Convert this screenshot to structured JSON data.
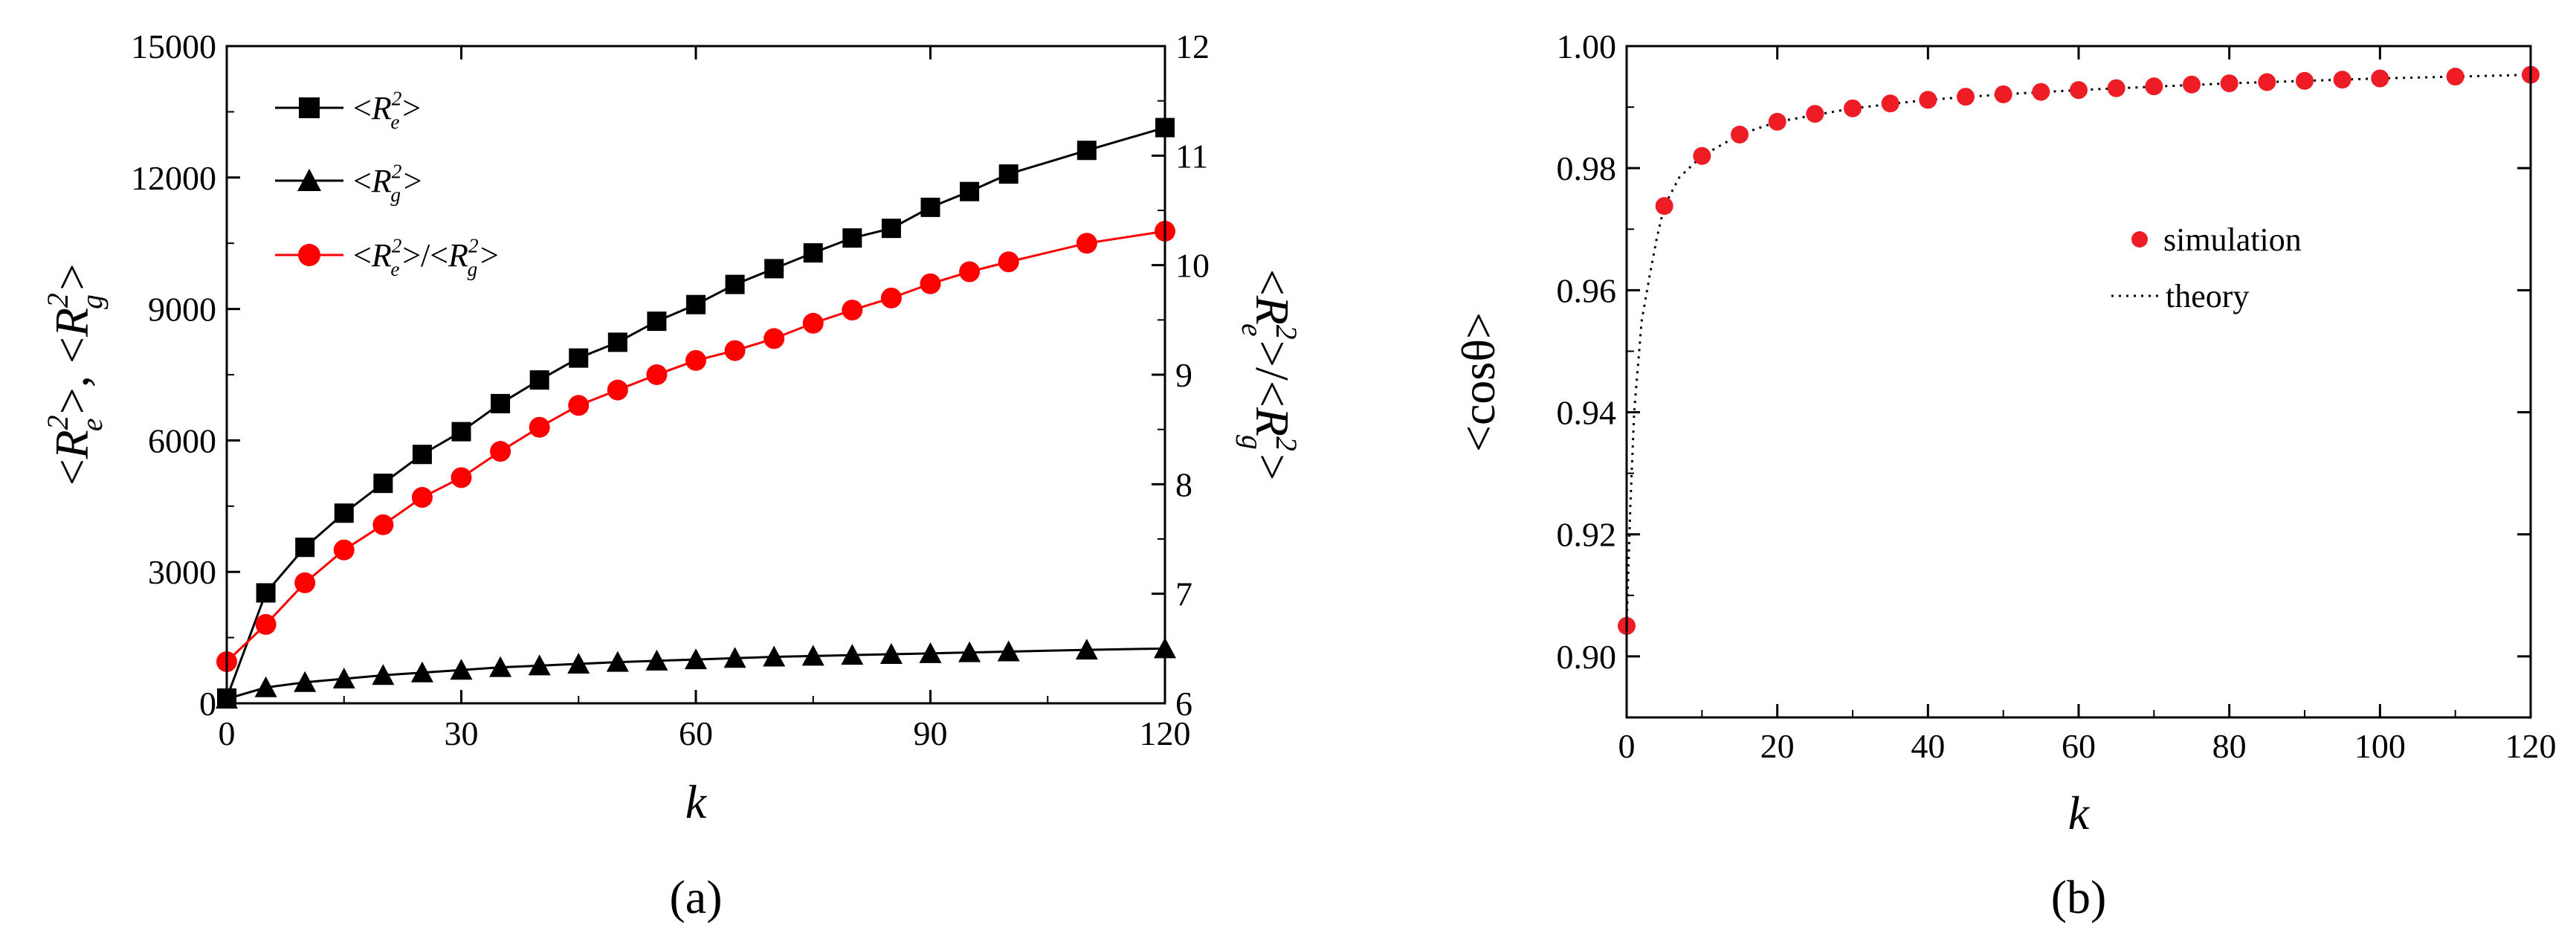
{
  "chart_data": [
    {
      "type": "line",
      "panel_label": "(a)",
      "xlabel": "k",
      "ylabel_left_parts": [
        "<R",
        "2",
        "e",
        ">, <R",
        "2",
        "g",
        ">"
      ],
      "ylabel_right_parts": [
        "<R",
        "2",
        "e",
        ">/<R",
        "2",
        "g",
        ">"
      ],
      "xlim": [
        0,
        120
      ],
      "xticks": [
        "0",
        "30",
        "60",
        "90",
        "120"
      ],
      "ylim_left": [
        0,
        15000
      ],
      "yticks_left": [
        "0",
        "3000",
        "6000",
        "9000",
        "12000",
        "15000"
      ],
      "ylim_right": [
        6,
        12
      ],
      "yticks_right": [
        "6",
        "7",
        "8",
        "9",
        "10",
        "11",
        "12"
      ],
      "series": [
        {
          "name": "<Re2>",
          "legend_parts": [
            "<R",
            "2",
            "e",
            ">"
          ],
          "axis": "left",
          "marker": "square",
          "color": "#000000",
          "x": [
            0,
            5,
            10,
            15,
            20,
            25,
            30,
            35,
            40,
            45,
            50,
            55,
            60,
            65,
            70,
            75,
            80,
            85,
            90,
            95,
            100,
            110,
            120
          ],
          "values": [
            120,
            2520,
            3560,
            4340,
            5020,
            5680,
            6200,
            6840,
            7380,
            7880,
            8240,
            8720,
            9100,
            9560,
            9920,
            10280,
            10620,
            10840,
            11320,
            11680,
            12080,
            12620,
            13140
          ]
        },
        {
          "name": "<Rg2>",
          "legend_parts": [
            "<R",
            "2",
            "g",
            ">"
          ],
          "axis": "left",
          "marker": "triangle",
          "color": "#000000",
          "x": [
            0,
            5,
            10,
            15,
            20,
            25,
            30,
            35,
            40,
            45,
            50,
            55,
            60,
            65,
            70,
            75,
            80,
            85,
            90,
            95,
            100,
            110,
            120
          ],
          "values": [
            100,
            360,
            480,
            560,
            640,
            700,
            760,
            820,
            860,
            900,
            940,
            970,
            1000,
            1030,
            1060,
            1080,
            1100,
            1120,
            1140,
            1160,
            1180,
            1220,
            1250
          ]
        },
        {
          "name": "<Re2>/<Rg2>",
          "legend_parts": [
            "<R",
            "2",
            "e",
            ">/<R",
            "2",
            "g",
            ">"
          ],
          "axis": "right",
          "marker": "circle",
          "color": "#ff0000",
          "x": [
            0,
            5,
            10,
            15,
            20,
            25,
            30,
            35,
            40,
            45,
            50,
            55,
            60,
            65,
            70,
            75,
            80,
            85,
            90,
            95,
            100,
            110,
            120
          ],
          "values": [
            6.38,
            6.72,
            7.1,
            7.4,
            7.63,
            7.88,
            8.06,
            8.3,
            8.52,
            8.72,
            8.86,
            9.0,
            9.13,
            9.22,
            9.33,
            9.47,
            9.59,
            9.7,
            9.83,
            9.94,
            10.03,
            10.2,
            10.31
          ]
        }
      ]
    },
    {
      "type": "scatter",
      "panel_label": "(b)",
      "xlabel": "k",
      "ylabel": "<cosθ>",
      "xlim": [
        0,
        120
      ],
      "xticks": [
        "0",
        "20",
        "40",
        "60",
        "80",
        "100",
        "120"
      ],
      "ylim": [
        0.89,
        1.0
      ],
      "yticks": [
        "0.90",
        "0.92",
        "0.94",
        "0.96",
        "0.98",
        "1.00"
      ],
      "legend_position": "middle-right",
      "series": [
        {
          "name": "simulation",
          "marker": "circle",
          "color": "#ee1c25",
          "x": [
            0,
            5,
            10,
            15,
            20,
            25,
            30,
            35,
            40,
            45,
            50,
            55,
            60,
            65,
            70,
            75,
            80,
            85,
            90,
            95,
            100,
            110,
            120
          ],
          "values": [
            0.905,
            0.9738,
            0.982,
            0.9855,
            0.9876,
            0.9889,
            0.9898,
            0.9906,
            0.9912,
            0.9917,
            0.9921,
            0.9925,
            0.9928,
            0.9931,
            0.9934,
            0.9937,
            0.9939,
            0.9941,
            0.9943,
            0.9945,
            0.9947,
            0.995,
            0.9953
          ]
        },
        {
          "name": "theory",
          "style": "dotted",
          "color": "#000000",
          "x": [
            0,
            0.5,
            1,
            2,
            3,
            4,
            5,
            7,
            10,
            15,
            20,
            30,
            40,
            50,
            60,
            80,
            100,
            120
          ],
          "values": [
            0.905,
            0.925,
            0.94,
            0.955,
            0.962,
            0.9685,
            0.9738,
            0.9785,
            0.982,
            0.9855,
            0.9876,
            0.9898,
            0.9912,
            0.9921,
            0.9928,
            0.9939,
            0.9947,
            0.9953
          ]
        }
      ]
    }
  ]
}
